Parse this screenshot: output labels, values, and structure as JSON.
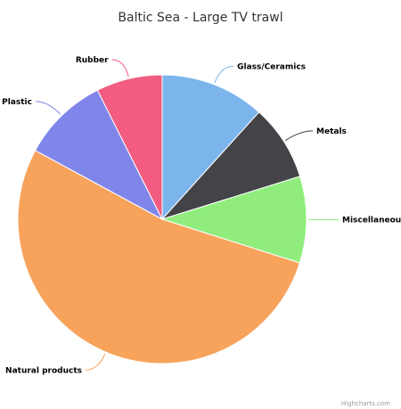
{
  "chart_data": {
    "type": "pie",
    "title": "Baltic Sea - Large TV trawl",
    "slices": [
      {
        "name": "Glass/Ceramics",
        "value": 11.7,
        "color": "#7cb5ec"
      },
      {
        "name": "Metals",
        "value": 8.5,
        "color": "#434348"
      },
      {
        "name": "Miscellaneous",
        "value": 9.7,
        "color": "#90ed7d"
      },
      {
        "name": "Natural products",
        "value": 53.0,
        "color": "#f7a35c"
      },
      {
        "name": "Plastic",
        "value": 9.7,
        "color": "#8085e9"
      },
      {
        "name": "Rubber",
        "value": 7.4,
        "color": "#f15c80"
      }
    ],
    "start_angle_deg": 0,
    "legend": "none",
    "data_labels": "outside-with-connectors"
  },
  "credits": "Highcharts.com"
}
